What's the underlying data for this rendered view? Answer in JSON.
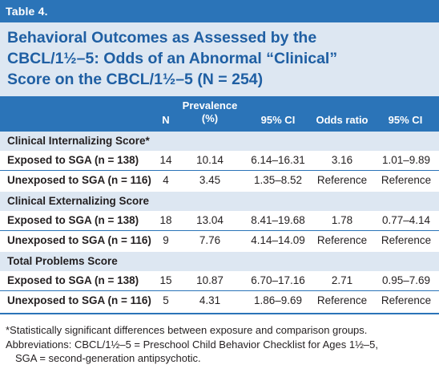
{
  "table_label": "Table 4.",
  "title_lines": [
    "Behavioral Outcomes as Assessed by the",
    "CBCL/1½–5: Odds of an Abnormal “Clinical”",
    "Score on the CBCL/1½–5 (N = 254)"
  ],
  "columns": {
    "n": "N",
    "prevalence_1": "Prevalence",
    "prevalence_2": "(%)",
    "ci1": "95% CI",
    "odds": "Odds ratio",
    "ci2": "95% CI"
  },
  "sections": [
    {
      "label": "Clinical Internalizing Score*",
      "rows": [
        {
          "label": "Exposed to SGA (n = 138)",
          "n": "14",
          "prevalence": "10.14",
          "ci1": "6.14–16.31",
          "odds": "3.16",
          "ci2": "1.01–9.89"
        },
        {
          "label": "Unexposed to SGA (n = 116)",
          "n": "4",
          "prevalence": "3.45",
          "ci1": "1.35–8.52",
          "odds": "Reference",
          "ci2": "Reference"
        }
      ]
    },
    {
      "label": "Clinical Externalizing Score",
      "rows": [
        {
          "label": "Exposed to SGA (n = 138)",
          "n": "18",
          "prevalence": "13.04",
          "ci1": "8.41–19.68",
          "odds": "1.78",
          "ci2": "0.77–4.14"
        },
        {
          "label": "Unexposed to SGA (n = 116)",
          "n": "9",
          "prevalence": "7.76",
          "ci1": "4.14–14.09",
          "odds": "Reference",
          "ci2": "Reference"
        }
      ]
    },
    {
      "label": "Total Problems Score",
      "rows": [
        {
          "label": "Exposed to SGA (n = 138)",
          "n": "15",
          "prevalence": "10.87",
          "ci1": "6.70–17.16",
          "odds": "2.71",
          "ci2": "0.95–7.69"
        },
        {
          "label": "Unexposed to SGA (n = 116)",
          "n": "5",
          "prevalence": "4.31",
          "ci1": "1.86–9.69",
          "odds": "Reference",
          "ci2": "Reference"
        }
      ]
    }
  ],
  "notes": [
    "*Statistically significant differences between exposure and comparison groups.",
    "Abbreviations: CBCL/1½–5 = Preschool Child Behavior Checklist for Ages 1½–5,",
    "SGA = second-generation antipsychotic."
  ],
  "colors": {
    "accent": "#2b74b8",
    "title": "#1f5fa3",
    "section_bg": "#dde7f2"
  }
}
